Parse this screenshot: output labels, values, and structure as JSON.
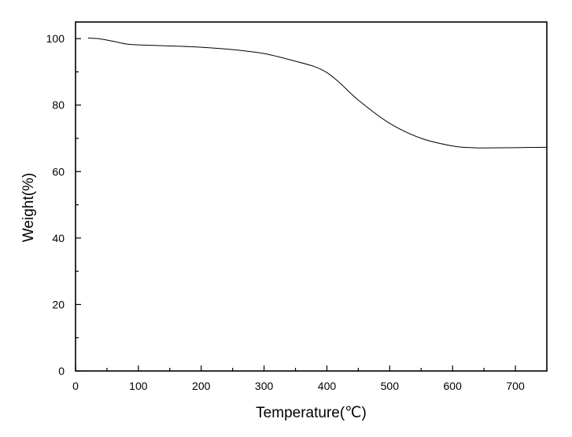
{
  "chart_data": {
    "type": "line",
    "title": "",
    "xlabel": "Temperature(℃)",
    "ylabel": "Weight(%)",
    "xlim": [
      0,
      750
    ],
    "ylim": [
      0,
      105
    ],
    "xticks": [
      0,
      100,
      200,
      300,
      400,
      500,
      600,
      700
    ],
    "yticks": [
      0,
      20,
      40,
      60,
      80,
      100
    ],
    "grid": false,
    "legend": "none",
    "colors": {
      "line": "#000000",
      "axes": "#000000",
      "background": "#ffffff"
    },
    "series": [
      {
        "x": [
          20,
          40,
          60,
          80,
          100,
          150,
          200,
          250,
          300,
          350,
          380,
          400,
          420,
          450,
          500,
          550,
          600,
          630,
          650,
          700,
          750
        ],
        "y": [
          100.2,
          99.9,
          99.2,
          98.4,
          98.1,
          97.8,
          97.4,
          96.7,
          95.5,
          93.2,
          91.6,
          89.8,
          86.8,
          81.5,
          74.5,
          70.0,
          67.7,
          67.2,
          67.1,
          67.2,
          67.3
        ]
      }
    ]
  }
}
